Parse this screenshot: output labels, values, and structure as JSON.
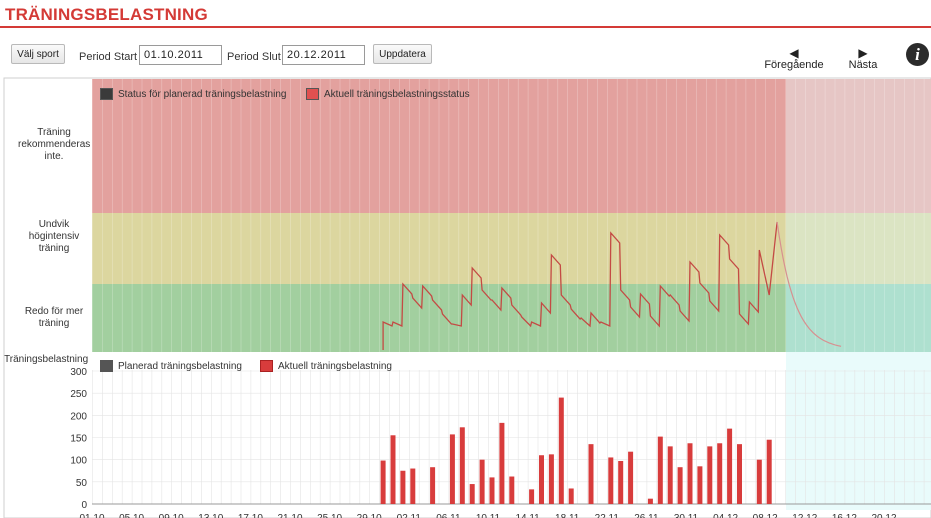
{
  "page_title": "TRÄNINGSBELASTNING",
  "toolbar": {
    "choose_sport_label": "Välj sport",
    "period_start_label": "Period Start",
    "period_start_value": "01.10.2011",
    "period_end_label": "Period Slut",
    "period_end_value": "20.12.2011",
    "update_label": "Uppdatera",
    "prev_label": "Föregående",
    "next_label": "Nästa",
    "info_label": "i"
  },
  "status_chart": {
    "zone_labels": [
      "Träning rekommenderas inte.",
      "Undvik högintensiv träning",
      "Redo för mer träning"
    ],
    "legend": [
      {
        "label": "Status för planerad träningsbelastning",
        "color": "#3a3a3a"
      },
      {
        "label": "Aktuell träningsbelastningsstatus",
        "color": "#e05050"
      }
    ],
    "zone_colors": {
      "red": "#e3a19e",
      "yellow": "#dcd69f",
      "green": "#a2cf9f"
    }
  },
  "load_chart": {
    "ylabel": "Träningsbelastning",
    "legend": [
      {
        "label": "Planerad träningsbelastning",
        "color": "#555555"
      },
      {
        "label": "Aktuell träningsbelastning",
        "color": "#d83c3c"
      }
    ]
  },
  "chart_data": {
    "type": "bar",
    "title": "",
    "ylabel": "Träningsbelastning",
    "ylim": [
      0,
      300
    ],
    "yticks": [
      0,
      50,
      100,
      150,
      200,
      250,
      300
    ],
    "x_tick_labels": [
      "01.10",
      "05.10",
      "09.10",
      "13.10",
      "17.10",
      "21.10",
      "25.10",
      "29.10",
      "02.11",
      "06.11",
      "10.11",
      "14.11",
      "18.11",
      "22.11",
      "26.11",
      "30.11",
      "04.12",
      "08.12",
      "12.12",
      "16.12",
      "20.12"
    ],
    "series": [
      {
        "name": "Aktuell träningsbelastning",
        "days": [
          29,
          30,
          31,
          32,
          34,
          36,
          37,
          38,
          39,
          40,
          41,
          42,
          44,
          45,
          46,
          47,
          48,
          50,
          52,
          53,
          54,
          56,
          57,
          58,
          59,
          60,
          61,
          62,
          63,
          64,
          65,
          67,
          68,
          69,
          70,
          71,
          72,
          73,
          74
        ],
        "dates": [
          "29.10",
          "30.10",
          "31.10",
          "01.11",
          "03.11",
          "05.11",
          "06.11",
          "07.11",
          "08.11",
          "09.11",
          "10.11",
          "11.11",
          "13.11",
          "14.11",
          "15.11",
          "16.11",
          "17.11",
          "19.11",
          "21.11",
          "22.11",
          "23.11",
          "25.11",
          "26.11",
          "27.11",
          "28.11",
          "29.11",
          "30.11",
          "01.12",
          "02.12",
          "03.12",
          "04.12",
          "06.12",
          "07.12",
          "08.12",
          "09.12",
          "10.12",
          "11.12",
          "12.12",
          "13.12"
        ],
        "values": [
          98,
          155,
          75,
          80,
          83,
          157,
          173,
          45,
          100,
          60,
          183,
          62,
          33,
          110,
          112,
          240,
          35,
          135,
          105,
          97,
          118,
          12,
          152,
          130,
          83,
          137,
          85,
          130,
          137,
          170,
          135,
          100,
          145,
          0,
          0,
          0,
          0,
          0,
          0
        ]
      }
    ]
  }
}
